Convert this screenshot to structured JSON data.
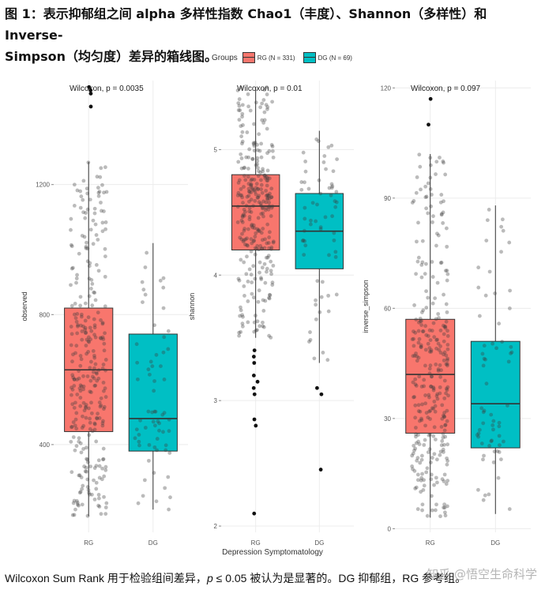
{
  "heading_line1": "图 1：表示抑郁组之间 alpha 多样性指数 Chao1（丰度）、Shannon（多样性）和 Inverse-",
  "heading_line2": "Simpson（均匀度）差异的箱线图。",
  "legend": {
    "title": "Groups",
    "items": [
      {
        "label": "RG (N = 331)",
        "color": "#F8766D"
      },
      {
        "label": "DG (N = 69)",
        "color": "#00BFC4"
      }
    ]
  },
  "shared_xlabel": "Depression Symptomatology",
  "caption_pre": "Wilcoxon Sum Rank 用于检验组间差异，",
  "caption_p": "p",
  "caption_post": " ≤ 0.05 被认为是显著的。DG 抑郁组，RG 参考组。",
  "watermark": "知乎 @悟空生命科学",
  "chart_data": [
    {
      "type": "box",
      "title": "Wilcoxon, p = 0.0035",
      "ylabel": "observed",
      "categories": [
        "RG",
        "DG"
      ],
      "ylim": [
        130,
        1520
      ],
      "yticks": [
        400,
        800,
        1200
      ],
      "grid": true,
      "series": [
        {
          "name": "RG",
          "color": "#F8766D",
          "min": 180,
          "q1": 440,
          "median": 630,
          "q3": 820,
          "max": 1270,
          "outliers": [
            1440,
            1480,
            1500,
            1490
          ]
        },
        {
          "name": "DG",
          "color": "#00BFC4",
          "min": 200,
          "q1": 380,
          "median": 480,
          "q3": 740,
          "max": 1020,
          "outliers": []
        }
      ]
    },
    {
      "type": "box",
      "title": "Wilcoxon, p = 0.01",
      "ylabel": "shannon",
      "categories": [
        "RG",
        "DG"
      ],
      "ylim": [
        1.95,
        5.55
      ],
      "yticks": [
        2,
        3,
        4,
        5
      ],
      "grid": true,
      "series": [
        {
          "name": "RG",
          "color": "#F8766D",
          "min": 3.5,
          "q1": 4.2,
          "median": 4.55,
          "q3": 4.8,
          "max": 5.5,
          "outliers": [
            2.1,
            2.8,
            2.85,
            3.05,
            3.1,
            3.15,
            3.2,
            3.3,
            3.35,
            3.4
          ]
        },
        {
          "name": "DG",
          "color": "#00BFC4",
          "min": 3.3,
          "q1": 4.05,
          "median": 4.35,
          "q3": 4.65,
          "max": 5.15,
          "outliers": [
            2.45,
            3.05,
            3.1
          ]
        }
      ]
    },
    {
      "type": "box",
      "title": "Wilcoxon, p = 0.097",
      "ylabel": "inverse_simpson",
      "categories": [
        "RG",
        "DG"
      ],
      "ylim": [
        -1,
        122
      ],
      "yticks": [
        0,
        30,
        60,
        90,
        120
      ],
      "grid": true,
      "series": [
        {
          "name": "RG",
          "color": "#F8766D",
          "min": 3,
          "q1": 26,
          "median": 42,
          "q3": 57,
          "max": 102,
          "outliers": [
            110,
            117
          ]
        },
        {
          "name": "DG",
          "color": "#00BFC4",
          "min": 4,
          "q1": 22,
          "median": 34,
          "q3": 51,
          "max": 88,
          "outliers": []
        }
      ]
    }
  ]
}
